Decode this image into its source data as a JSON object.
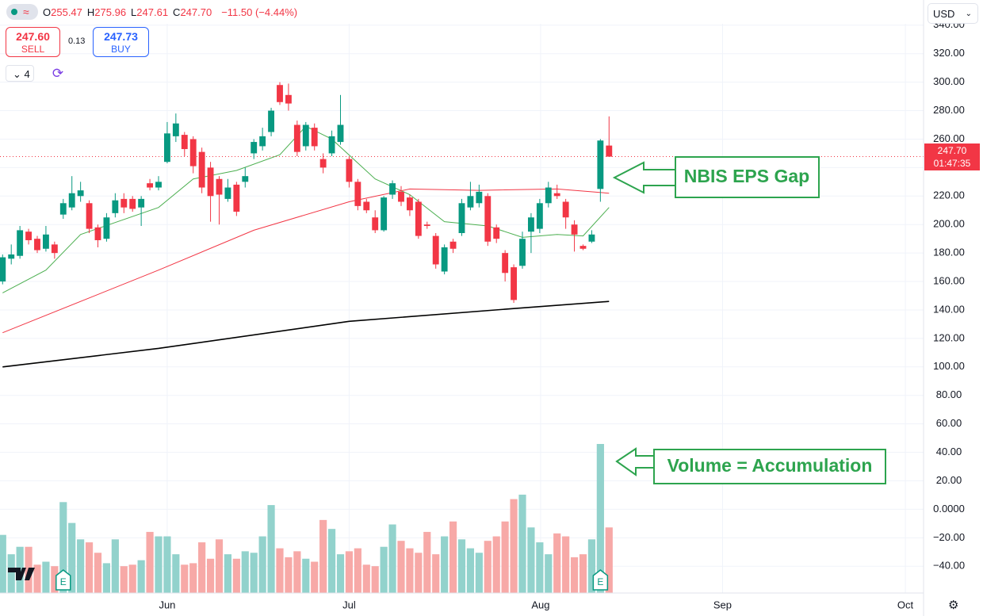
{
  "header": {
    "ohlc": [
      {
        "label": "O",
        "value": "255.47"
      },
      {
        "label": "H",
        "value": "275.96"
      },
      {
        "label": "L",
        "value": "247.61"
      },
      {
        "label": "C",
        "value": "247.70"
      }
    ],
    "change": "−11.50 (−4.44%)",
    "sell_price": "247.60",
    "sell": "SELL",
    "spread": "0.13",
    "buy_price": "247.73",
    "buy": "BUY",
    "interval": "4",
    "currency": "USD"
  },
  "price_label": {
    "price": "247.70",
    "countdown": "01:47:35"
  },
  "annotations": {
    "gap": "NBIS EPS Gap",
    "volume": "Volume = Accumulation"
  },
  "earnings": {
    "label": "E",
    "index": [
      7,
      69
    ]
  },
  "chart_data": {
    "type": "candlestick",
    "ylim": [
      -58.8,
      341
    ],
    "yticks": [
      {
        "value": 340,
        "label": "340.00"
      },
      {
        "value": 320,
        "label": "320.00"
      },
      {
        "value": 300,
        "label": "300.00"
      },
      {
        "value": 280,
        "label": "280.00"
      },
      {
        "value": 260,
        "label": "260.00"
      },
      {
        "value": 240,
        "label": "240.00"
      },
      {
        "value": 220,
        "label": "220.00"
      },
      {
        "value": 200,
        "label": "200.00"
      },
      {
        "value": 180,
        "label": "180.00"
      },
      {
        "value": 160,
        "label": "160.00"
      },
      {
        "value": 140,
        "label": "140.00"
      },
      {
        "value": 120,
        "label": "120.00"
      },
      {
        "value": 100,
        "label": "100.00"
      },
      {
        "value": 80,
        "label": "80.00"
      },
      {
        "value": 60,
        "label": "60.00"
      },
      {
        "value": 40,
        "label": "40.00"
      },
      {
        "value": 20,
        "label": "20.00"
      },
      {
        "value": 0,
        "label": "0.0000"
      },
      {
        "value": -20,
        "label": "−20.00"
      },
      {
        "value": -40,
        "label": "−40.00"
      }
    ],
    "xlim": [
      -0.3,
      106.3
    ],
    "xticks": [
      {
        "value": 19,
        "label": "Jun"
      },
      {
        "value": 40,
        "label": "Jul"
      },
      {
        "value": 62.1,
        "label": "Aug"
      },
      {
        "value": 83.1,
        "label": "Sep"
      },
      {
        "value": 104.2,
        "label": "Oct"
      }
    ],
    "up_color": "#089981",
    "down_color": "#f23645",
    "up_volume_color": "#92d2cc",
    "down_volume_color": "#f7a9a7",
    "last_price": 247.7,
    "candles": {
      "open": [
        160,
        176,
        178,
        195,
        190,
        183,
        186,
        207,
        212,
        220,
        215,
        198,
        190,
        208,
        218,
        218,
        212,
        229,
        226,
        244,
        262,
        263,
        260,
        251,
        240,
        232,
        218,
        228,
        230,
        250,
        255,
        265,
        298,
        291,
        270,
        255,
        268,
        246,
        250,
        258,
        246,
        230,
        216,
        205,
        196,
        221,
        223,
        219,
        216,
        200,
        192,
        167,
        188,
        194,
        212,
        215,
        220,
        198,
        180,
        170,
        171,
        195,
        197,
        215,
        222,
        216,
        200,
        185,
        188,
        225,
        255.47
      ],
      "high": [
        179,
        186,
        199,
        197,
        192,
        199,
        188,
        218,
        234,
        230,
        217,
        200,
        208,
        222,
        222,
        220,
        220,
        232,
        234,
        272,
        278,
        265,
        262,
        254,
        244,
        234,
        232,
        230,
        240,
        260,
        268,
        282,
        300,
        299,
        273,
        272,
        271,
        250,
        266,
        291,
        248,
        232,
        218,
        210,
        220,
        231,
        227,
        221,
        218,
        202,
        194,
        186,
        190,
        218,
        230,
        228,
        222,
        200,
        182,
        172,
        195,
        208,
        218,
        230,
        228,
        218,
        203,
        186,
        196,
        260,
        275.96
      ],
      "low": [
        158,
        172,
        176,
        186,
        180,
        181,
        176,
        204,
        210,
        216,
        194,
        184,
        188,
        205,
        208,
        209,
        199,
        224,
        224,
        243,
        258,
        248,
        236,
        222,
        202,
        200,
        216,
        206,
        226,
        246,
        252,
        262,
        284,
        280,
        248,
        252,
        252,
        236,
        248,
        256,
        226,
        210,
        208,
        194,
        195,
        218,
        213,
        206,
        190,
        197,
        169,
        165,
        180,
        192,
        210,
        212,
        185,
        187,
        160,
        145,
        169,
        180,
        194,
        212,
        218,
        197,
        181,
        182,
        187,
        216,
        247.61
      ],
      "close": [
        177,
        179,
        196,
        189,
        182,
        193,
        180,
        215,
        222,
        224,
        197,
        189,
        205,
        217,
        212,
        211,
        218,
        226,
        230,
        264,
        271,
        253,
        241,
        226,
        220,
        221,
        226,
        209,
        234,
        258,
        262,
        280,
        286,
        285,
        251,
        270,
        255,
        240,
        262,
        270,
        230,
        213,
        210,
        196,
        219,
        229,
        216,
        210,
        192,
        199,
        172,
        184,
        183,
        215,
        220,
        223,
        188,
        190,
        166,
        147,
        190,
        205,
        215,
        226,
        220,
        205,
        193,
        183,
        193,
        259,
        247.7
      ]
    },
    "volume": {
      "vlim": [
        0,
        100
      ],
      "values": [
        39,
        26,
        31,
        31,
        19,
        21,
        18,
        61,
        47,
        36,
        34,
        27,
        20,
        36,
        18,
        19,
        22,
        41,
        38,
        38,
        26,
        19,
        20,
        34,
        23,
        36,
        26,
        23,
        28,
        27,
        38,
        59,
        30,
        24,
        28,
        23,
        21,
        49,
        43,
        26,
        28,
        30,
        19,
        18,
        31,
        46,
        35,
        30,
        27,
        41,
        26,
        38,
        48,
        36,
        30,
        27,
        35,
        38,
        48,
        63,
        66,
        44,
        34,
        26,
        40,
        38,
        24,
        26,
        36,
        100,
        44
      ]
    },
    "series": [
      {
        "color": "#4caf50",
        "x": [
          0,
          5,
          9,
          18,
          22,
          27,
          32,
          35,
          38,
          43,
          47,
          51,
          56,
          60,
          64,
          67,
          70
        ],
        "values": [
          152,
          168,
          193,
          212,
          232,
          238,
          249,
          269,
          260,
          232,
          221,
          202,
          199,
          191,
          193,
          192,
          212
        ]
      },
      {
        "color": "#f23645",
        "x": [
          0,
          18,
          29,
          40,
          47,
          55,
          64,
          70
        ],
        "values": [
          124,
          168,
          196,
          216,
          225,
          224,
          225,
          222
        ]
      },
      {
        "color": "#000000",
        "x": [
          0,
          18,
          40,
          59,
          70
        ],
        "values": [
          100,
          113,
          132,
          141,
          146
        ]
      }
    ]
  }
}
